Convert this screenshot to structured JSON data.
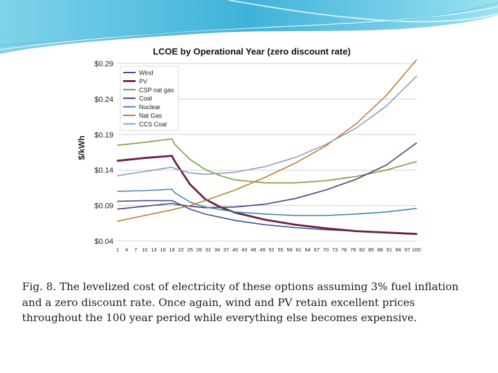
{
  "slide": {
    "caption_lines": [
      "Fig. 8. The levelized cost of electricity of these options assuming 3% fuel inflation",
      "and a zero discount rate.  Once again, wind and PV retain excellent prices",
      "throughout the 100 year period while everything else becomes expensive."
    ]
  },
  "chart_data": {
    "type": "line",
    "title": "LCOE by Operational Year (zero discount rate)",
    "xlabel": "",
    "ylabel": "$/kWh",
    "ylim": [
      0.04,
      0.29
    ],
    "xlim": [
      1,
      100
    ],
    "y_ticks": [
      0.04,
      0.09,
      0.14,
      0.19,
      0.24,
      0.29
    ],
    "y_tick_labels": [
      "$0.04",
      "$0.09",
      "$0.14",
      "$0.19",
      "$0.24",
      "$0.29"
    ],
    "x_ticks": [
      1,
      4,
      7,
      10,
      13,
      16,
      19,
      22,
      25,
      28,
      31,
      34,
      37,
      40,
      43,
      46,
      49,
      52,
      55,
      58,
      61,
      64,
      67,
      70,
      73,
      76,
      79,
      82,
      85,
      88,
      91,
      94,
      97,
      100
    ],
    "grid": true,
    "legend_position": "top-left",
    "series": [
      {
        "name": "Wind",
        "color": "#3b4f8a",
        "width": 1.6,
        "x": [
          1,
          10,
          19,
          20,
          25,
          30,
          40,
          50,
          60,
          70,
          80,
          90,
          100
        ],
        "y": [
          0.096,
          0.097,
          0.097,
          0.095,
          0.085,
          0.078,
          0.069,
          0.063,
          0.059,
          0.056,
          0.054,
          0.052,
          0.05
        ]
      },
      {
        "name": "PV",
        "color": "#6b1f4b",
        "width": 2.8,
        "x": [
          1,
          10,
          19,
          20,
          25,
          30,
          35,
          40,
          50,
          60,
          70,
          80,
          90,
          100
        ],
        "y": [
          0.153,
          0.157,
          0.16,
          0.152,
          0.12,
          0.099,
          0.088,
          0.08,
          0.07,
          0.063,
          0.058,
          0.054,
          0.052,
          0.05
        ]
      },
      {
        "name": "CSP nat gas",
        "color": "#7a9a3a",
        "width": 1.6,
        "x": [
          1,
          10,
          19,
          20,
          25,
          30,
          35,
          40,
          50,
          60,
          70,
          80,
          90,
          100
        ],
        "y": [
          0.175,
          0.179,
          0.184,
          0.176,
          0.155,
          0.141,
          0.132,
          0.126,
          0.122,
          0.122,
          0.125,
          0.131,
          0.14,
          0.152
        ]
      },
      {
        "name": "Coal",
        "color": "#4a3a7a",
        "width": 1.6,
        "x": [
          1,
          10,
          19,
          20,
          25,
          30,
          40,
          50,
          60,
          70,
          80,
          90,
          100
        ],
        "y": [
          0.085,
          0.089,
          0.093,
          0.092,
          0.089,
          0.087,
          0.088,
          0.092,
          0.1,
          0.112,
          0.127,
          0.147,
          0.178
        ]
      },
      {
        "name": "Nuclear",
        "color": "#3f86a8",
        "width": 1.6,
        "x": [
          1,
          10,
          19,
          20,
          25,
          30,
          40,
          50,
          60,
          70,
          80,
          90,
          100
        ],
        "y": [
          0.11,
          0.111,
          0.113,
          0.108,
          0.095,
          0.088,
          0.081,
          0.078,
          0.076,
          0.076,
          0.078,
          0.081,
          0.086
        ]
      },
      {
        "name": "Nat Gas",
        "color": "#c07a30",
        "width": 1.6,
        "x": [
          1,
          10,
          19,
          20,
          25,
          30,
          40,
          50,
          60,
          70,
          80,
          90,
          100
        ],
        "y": [
          0.068,
          0.076,
          0.084,
          0.085,
          0.09,
          0.097,
          0.112,
          0.13,
          0.15,
          0.174,
          0.205,
          0.245,
          0.295
        ]
      },
      {
        "name": "CCS Coal",
        "color": "#8a9ec0",
        "width": 1.6,
        "x": [
          1,
          10,
          19,
          20,
          25,
          30,
          40,
          50,
          60,
          70,
          80,
          90,
          100
        ],
        "y": [
          0.132,
          0.138,
          0.144,
          0.142,
          0.136,
          0.134,
          0.137,
          0.145,
          0.158,
          0.176,
          0.199,
          0.23,
          0.272
        ]
      }
    ]
  }
}
